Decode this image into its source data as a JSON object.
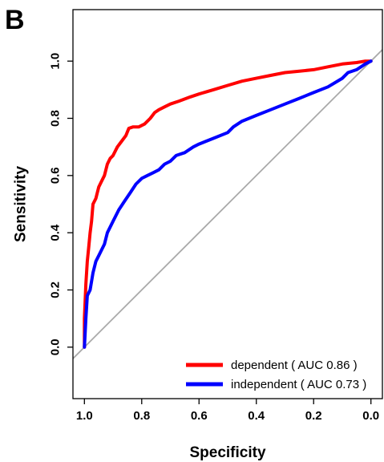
{
  "panel_label": "B",
  "chart_data": {
    "type": "line",
    "title": "",
    "xlabel": "Specificity",
    "ylabel": "Sensitivity",
    "xlim": [
      1.04,
      -0.04
    ],
    "ylim": [
      -0.18,
      1.18
    ],
    "x_reversed": true,
    "grid": false,
    "legend_position": "bottom-right",
    "x_ticks": [
      {
        "value": 1.0,
        "label": "1.0"
      },
      {
        "value": 0.8,
        "label": "0.8"
      },
      {
        "value": 0.6,
        "label": "0.6"
      },
      {
        "value": 0.4,
        "label": "0.4"
      },
      {
        "value": 0.2,
        "label": "0.2"
      },
      {
        "value": 0.0,
        "label": "0.0"
      }
    ],
    "y_ticks": [
      {
        "value": 0.0,
        "label": "0.0"
      },
      {
        "value": 0.2,
        "label": "0.2"
      },
      {
        "value": 0.4,
        "label": "0.4"
      },
      {
        "value": 0.6,
        "label": "0.6"
      },
      {
        "value": 0.8,
        "label": "0.8"
      },
      {
        "value": 1.0,
        "label": "1.0"
      }
    ],
    "reference_line": {
      "color": "#aaaaaa",
      "from": [
        1.0,
        0.0
      ],
      "to": [
        0.0,
        1.0
      ]
    },
    "series": [
      {
        "name": "dependent",
        "legend_label": "dependent ( AUC 0.86 )",
        "color": "#ff0000",
        "x": [
          1.0,
          1.0,
          0.995,
          0.99,
          0.985,
          0.98,
          0.975,
          0.97,
          0.96,
          0.955,
          0.95,
          0.94,
          0.93,
          0.92,
          0.91,
          0.9,
          0.885,
          0.87,
          0.855,
          0.845,
          0.83,
          0.81,
          0.79,
          0.77,
          0.755,
          0.74,
          0.72,
          0.7,
          0.67,
          0.63,
          0.6,
          0.55,
          0.5,
          0.45,
          0.4,
          0.35,
          0.3,
          0.25,
          0.2,
          0.15,
          0.1,
          0.05,
          0.02,
          0.0
        ],
        "y": [
          0.0,
          0.1,
          0.22,
          0.3,
          0.35,
          0.4,
          0.44,
          0.5,
          0.52,
          0.54,
          0.56,
          0.58,
          0.6,
          0.64,
          0.66,
          0.67,
          0.7,
          0.72,
          0.74,
          0.765,
          0.77,
          0.77,
          0.78,
          0.8,
          0.82,
          0.83,
          0.84,
          0.85,
          0.86,
          0.875,
          0.885,
          0.9,
          0.915,
          0.93,
          0.94,
          0.95,
          0.96,
          0.965,
          0.97,
          0.98,
          0.99,
          0.995,
          1.0,
          1.0
        ]
      },
      {
        "name": "independent",
        "legend_label": "independent ( AUC 0.73 )",
        "color": "#0000ff",
        "x": [
          1.0,
          0.995,
          0.99,
          0.98,
          0.975,
          0.97,
          0.96,
          0.95,
          0.94,
          0.93,
          0.92,
          0.9,
          0.88,
          0.86,
          0.84,
          0.82,
          0.8,
          0.78,
          0.76,
          0.74,
          0.72,
          0.7,
          0.68,
          0.65,
          0.62,
          0.6,
          0.55,
          0.5,
          0.48,
          0.45,
          0.4,
          0.35,
          0.3,
          0.25,
          0.2,
          0.15,
          0.1,
          0.08,
          0.05,
          0.02,
          0.0
        ],
        "y": [
          0.0,
          0.1,
          0.18,
          0.2,
          0.23,
          0.26,
          0.3,
          0.32,
          0.34,
          0.36,
          0.4,
          0.44,
          0.48,
          0.51,
          0.54,
          0.57,
          0.59,
          0.6,
          0.61,
          0.62,
          0.64,
          0.65,
          0.67,
          0.68,
          0.7,
          0.71,
          0.73,
          0.75,
          0.77,
          0.79,
          0.81,
          0.83,
          0.85,
          0.87,
          0.89,
          0.91,
          0.94,
          0.96,
          0.97,
          0.99,
          1.0
        ]
      }
    ]
  }
}
